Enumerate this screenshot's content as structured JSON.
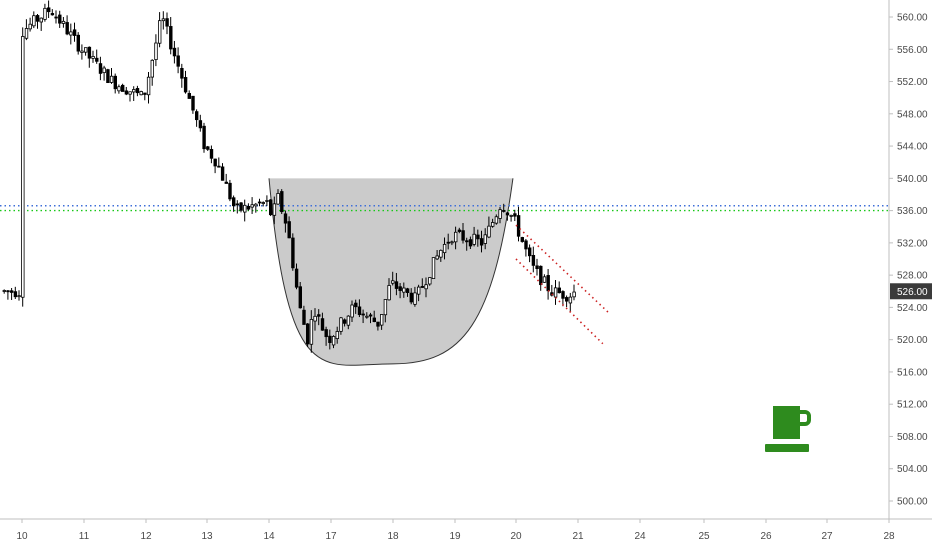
{
  "chart_data": {
    "type": "candlestick",
    "title": "",
    "xlabel": "",
    "ylabel": "",
    "ylim": [
      496,
      563
    ],
    "y_ticks": [
      "560.00",
      "556.00",
      "552.00",
      "548.00",
      "544.00",
      "540.00",
      "536.00",
      "532.00",
      "528.00",
      "524.00",
      "520.00",
      "516.00",
      "512.00",
      "508.00",
      "504.00",
      "500.00"
    ],
    "x_ticks": [
      "10",
      "11",
      "12",
      "13",
      "14",
      "17",
      "18",
      "19",
      "20",
      "21",
      "24",
      "25",
      "26",
      "27",
      "28"
    ],
    "last_price_label": "526.00",
    "last_price": 526.0,
    "horizontal_levels": [
      {
        "price": 536.6,
        "style": "dotted",
        "color": "#3f6fd8"
      },
      {
        "price": 536.0,
        "style": "dotted",
        "color": "#19c819"
      }
    ],
    "cup_pattern": {
      "rim_price": 540.0,
      "bottom_price": 517.0,
      "start_x": "14",
      "bottom_x": "18",
      "end_x": "19.95",
      "fill": "#c8c8c8",
      "stroke": "#333333"
    },
    "channel_lines": [
      {
        "from": [
          "20",
          534.2
        ],
        "to": [
          "21.5",
          523.3
        ],
        "color": "#cc2222"
      },
      {
        "from": [
          "20",
          530.0
        ],
        "to": [
          "21.4",
          519.5
        ],
        "color": "#cc2222"
      }
    ],
    "series_anchor_path": [
      [
        "10",
        558
      ],
      [
        "10.5",
        561
      ],
      [
        "11",
        556
      ],
      [
        "11.5",
        552
      ],
      [
        "12",
        550
      ],
      [
        "12.3",
        560
      ],
      [
        "12.7",
        551
      ],
      [
        "13",
        544
      ],
      [
        "13.2",
        542
      ],
      [
        "13.5",
        536
      ],
      [
        "14",
        537
      ],
      [
        "14.3",
        535
      ],
      [
        "14.5",
        538
      ],
      [
        "15",
        534
      ],
      [
        "15.6",
        524
      ],
      [
        "16",
        520
      ],
      [
        "16.3",
        524
      ],
      [
        "16.6",
        522
      ],
      [
        "17",
        520
      ],
      [
        "17.4",
        524
      ],
      [
        "17.8",
        522
      ],
      [
        "18",
        527
      ],
      [
        "18.4",
        525
      ],
      [
        "18.8",
        531
      ],
      [
        "19",
        533
      ],
      [
        "19.5",
        532
      ],
      [
        "19.8",
        537
      ],
      [
        "20",
        535
      ],
      [
        "20.3",
        529
      ],
      [
        "20.6",
        526
      ],
      [
        "20.9",
        525.5
      ],
      [
        "21",
        526
      ]
    ],
    "colors": {
      "up": "#ffffff",
      "down": "#000000",
      "wick": "#000000"
    }
  },
  "icon": {
    "name": "coffee-cup-icon",
    "color": "#2e8b1e"
  }
}
